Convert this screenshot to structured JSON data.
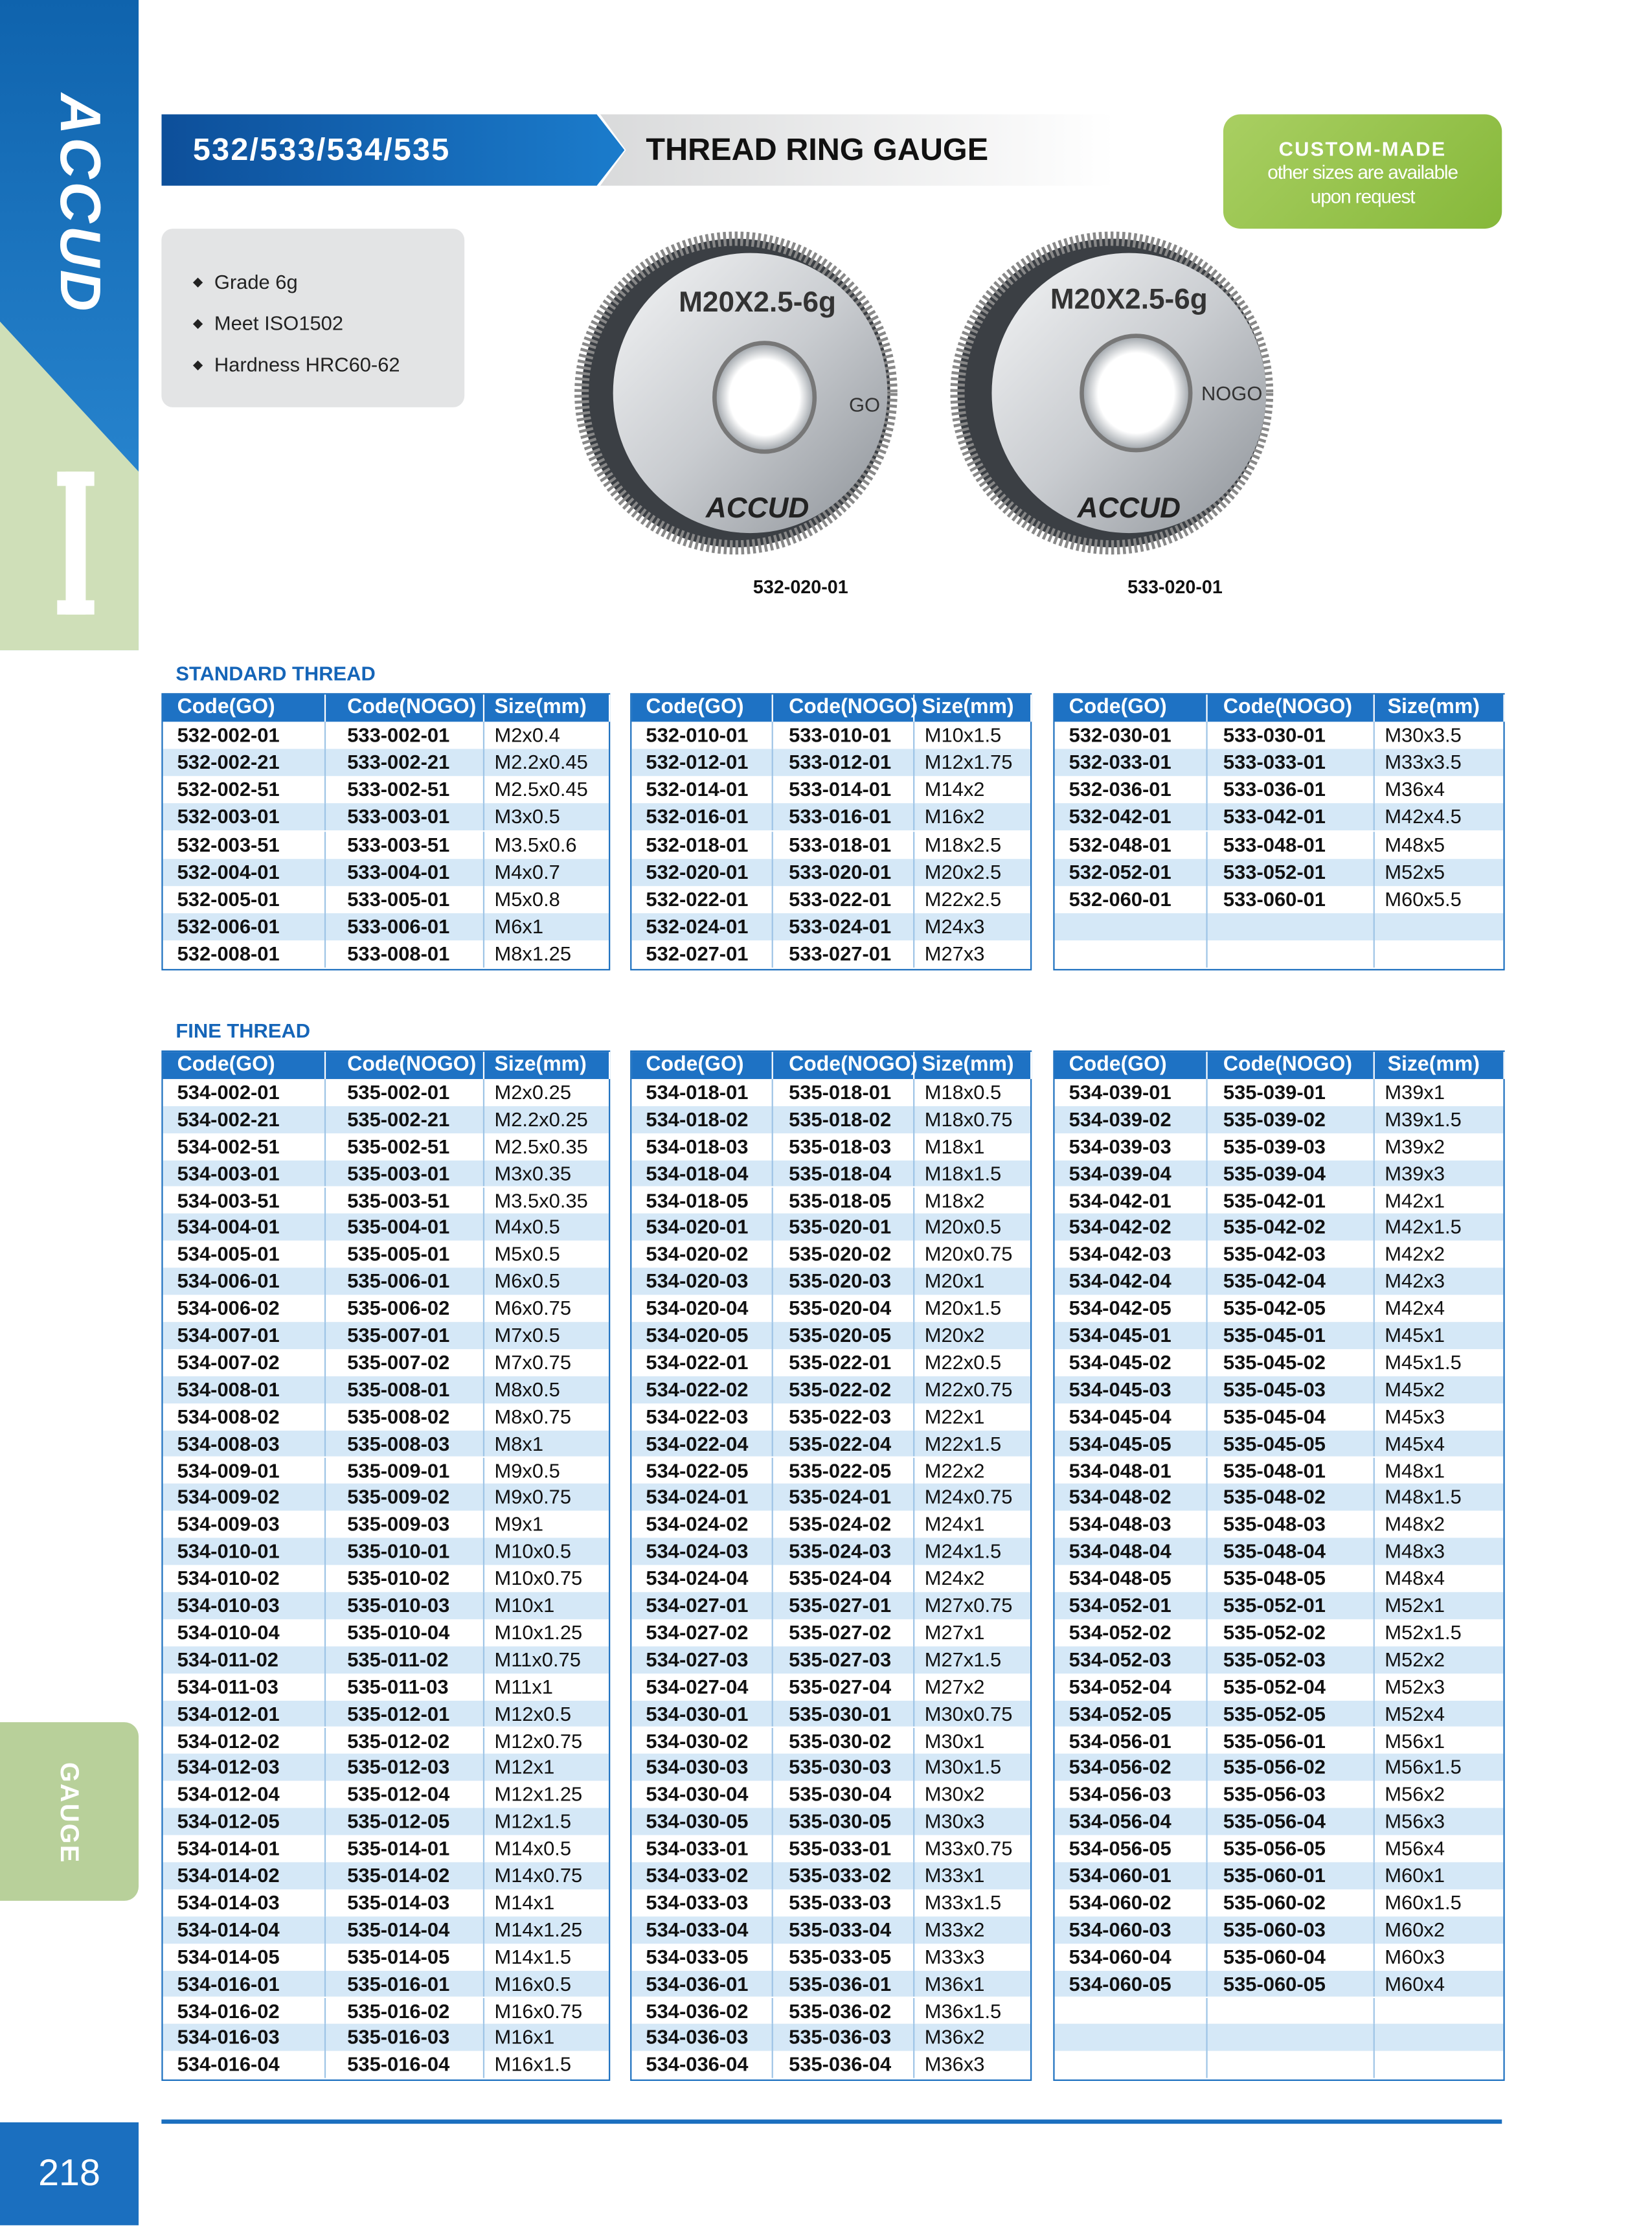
{
  "sidebar": {
    "brand": "ACCUD",
    "section": "GAUGE",
    "page_number": "218"
  },
  "header": {
    "series": "532/533/534/535",
    "title": "THREAD RING GAUGE"
  },
  "custom_made": {
    "title": "CUSTOM-MADE",
    "lines": [
      "other sizes are available",
      "upon request"
    ]
  },
  "features": [
    "Grade 6g",
    "Meet ISO1502",
    "Hardness HRC60-62"
  ],
  "products": [
    {
      "marking": "M20X2.5-6g",
      "kind": "GO",
      "brand": "ACCUD",
      "code": "532-020-01"
    },
    {
      "marking": "M20X2.5-6g",
      "kind": "NOGO",
      "brand": "ACCUD",
      "code": "533-020-01"
    }
  ],
  "sections": [
    {
      "title": "STANDARD THREAD",
      "tables": [
        {
          "header": [
            "Code(GO)",
            "Code(NOGO)",
            "Size(mm)"
          ],
          "rows": [
            [
              "532-002-01",
              "533-002-01",
              "M2x0.4"
            ],
            [
              "532-002-21",
              "533-002-21",
              "M2.2x0.45"
            ],
            [
              "532-002-51",
              "533-002-51",
              "M2.5x0.45"
            ],
            [
              "532-003-01",
              "533-003-01",
              "M3x0.5"
            ],
            [
              "532-003-51",
              "533-003-51",
              "M3.5x0.6"
            ],
            [
              "532-004-01",
              "533-004-01",
              "M4x0.7"
            ],
            [
              "532-005-01",
              "533-005-01",
              "M5x0.8"
            ],
            [
              "532-006-01",
              "533-006-01",
              "M6x1"
            ],
            [
              "532-008-01",
              "533-008-01",
              "M8x1.25"
            ]
          ]
        },
        {
          "header": [
            "Code(GO)",
            "Code(NOGO)",
            "Size(mm)"
          ],
          "rows": [
            [
              "532-010-01",
              "533-010-01",
              "M10x1.5"
            ],
            [
              "532-012-01",
              "533-012-01",
              "M12x1.75"
            ],
            [
              "532-014-01",
              "533-014-01",
              "M14x2"
            ],
            [
              "532-016-01",
              "533-016-01",
              "M16x2"
            ],
            [
              "532-018-01",
              "533-018-01",
              "M18x2.5"
            ],
            [
              "532-020-01",
              "533-020-01",
              "M20x2.5"
            ],
            [
              "532-022-01",
              "533-022-01",
              "M22x2.5"
            ],
            [
              "532-024-01",
              "533-024-01",
              "M24x3"
            ],
            [
              "532-027-01",
              "533-027-01",
              "M27x3"
            ]
          ]
        },
        {
          "header": [
            "Code(GO)",
            "Code(NOGO)",
            "Size(mm)"
          ],
          "rows": [
            [
              "532-030-01",
              "533-030-01",
              "M30x3.5"
            ],
            [
              "532-033-01",
              "533-033-01",
              "M33x3.5"
            ],
            [
              "532-036-01",
              "533-036-01",
              "M36x4"
            ],
            [
              "532-042-01",
              "533-042-01",
              "M42x4.5"
            ],
            [
              "532-048-01",
              "533-048-01",
              "M48x5"
            ],
            [
              "532-052-01",
              "533-052-01",
              "M52x5"
            ],
            [
              "532-060-01",
              "533-060-01",
              "M60x5.5"
            ]
          ]
        }
      ]
    },
    {
      "title": "FINE THREAD",
      "tables": [
        {
          "header": [
            "Code(GO)",
            "Code(NOGO)",
            "Size(mm)"
          ],
          "rows": [
            [
              "534-002-01",
              "535-002-01",
              "M2x0.25"
            ],
            [
              "534-002-21",
              "535-002-21",
              "M2.2x0.25"
            ],
            [
              "534-002-51",
              "535-002-51",
              "M2.5x0.35"
            ],
            [
              "534-003-01",
              "535-003-01",
              "M3x0.35"
            ],
            [
              "534-003-51",
              "535-003-51",
              "M3.5x0.35"
            ],
            [
              "534-004-01",
              "535-004-01",
              "M4x0.5"
            ],
            [
              "534-005-01",
              "535-005-01",
              "M5x0.5"
            ],
            [
              "534-006-01",
              "535-006-01",
              "M6x0.5"
            ],
            [
              "534-006-02",
              "535-006-02",
              "M6x0.75"
            ],
            [
              "534-007-01",
              "535-007-01",
              "M7x0.5"
            ],
            [
              "534-007-02",
              "535-007-02",
              "M7x0.75"
            ],
            [
              "534-008-01",
              "535-008-01",
              "M8x0.5"
            ],
            [
              "534-008-02",
              "535-008-02",
              "M8x0.75"
            ],
            [
              "534-008-03",
              "535-008-03",
              "M8x1"
            ],
            [
              "534-009-01",
              "535-009-01",
              "M9x0.5"
            ],
            [
              "534-009-02",
              "535-009-02",
              "M9x0.75"
            ],
            [
              "534-009-03",
              "535-009-03",
              "M9x1"
            ],
            [
              "534-010-01",
              "535-010-01",
              "M10x0.5"
            ],
            [
              "534-010-02",
              "535-010-02",
              "M10x0.75"
            ],
            [
              "534-010-03",
              "535-010-03",
              "M10x1"
            ],
            [
              "534-010-04",
              "535-010-04",
              "M10x1.25"
            ],
            [
              "534-011-02",
              "535-011-02",
              "M11x0.75"
            ],
            [
              "534-011-03",
              "535-011-03",
              "M11x1"
            ],
            [
              "534-012-01",
              "535-012-01",
              "M12x0.5"
            ],
            [
              "534-012-02",
              "535-012-02",
              "M12x0.75"
            ],
            [
              "534-012-03",
              "535-012-03",
              "M12x1"
            ],
            [
              "534-012-04",
              "535-012-04",
              "M12x1.25"
            ],
            [
              "534-012-05",
              "535-012-05",
              "M12x1.5"
            ],
            [
              "534-014-01",
              "535-014-01",
              "M14x0.5"
            ],
            [
              "534-014-02",
              "535-014-02",
              "M14x0.75"
            ],
            [
              "534-014-03",
              "535-014-03",
              "M14x1"
            ],
            [
              "534-014-04",
              "535-014-04",
              "M14x1.25"
            ],
            [
              "534-014-05",
              "535-014-05",
              "M14x1.5"
            ],
            [
              "534-016-01",
              "535-016-01",
              "M16x0.5"
            ],
            [
              "534-016-02",
              "535-016-02",
              "M16x0.75"
            ],
            [
              "534-016-03",
              "535-016-03",
              "M16x1"
            ],
            [
              "534-016-04",
              "535-016-04",
              "M16x1.5"
            ]
          ]
        },
        {
          "header": [
            "Code(GO)",
            "Code(NOGO)",
            "Size(mm)"
          ],
          "rows": [
            [
              "534-018-01",
              "535-018-01",
              "M18x0.5"
            ],
            [
              "534-018-02",
              "535-018-02",
              "M18x0.75"
            ],
            [
              "534-018-03",
              "535-018-03",
              "M18x1"
            ],
            [
              "534-018-04",
              "535-018-04",
              "M18x1.5"
            ],
            [
              "534-018-05",
              "535-018-05",
              "M18x2"
            ],
            [
              "534-020-01",
              "535-020-01",
              "M20x0.5"
            ],
            [
              "534-020-02",
              "535-020-02",
              "M20x0.75"
            ],
            [
              "534-020-03",
              "535-020-03",
              "M20x1"
            ],
            [
              "534-020-04",
              "535-020-04",
              "M20x1.5"
            ],
            [
              "534-020-05",
              "535-020-05",
              "M20x2"
            ],
            [
              "534-022-01",
              "535-022-01",
              "M22x0.5"
            ],
            [
              "534-022-02",
              "535-022-02",
              "M22x0.75"
            ],
            [
              "534-022-03",
              "535-022-03",
              "M22x1"
            ],
            [
              "534-022-04",
              "535-022-04",
              "M22x1.5"
            ],
            [
              "534-022-05",
              "535-022-05",
              "M22x2"
            ],
            [
              "534-024-01",
              "535-024-01",
              "M24x0.75"
            ],
            [
              "534-024-02",
              "535-024-02",
              "M24x1"
            ],
            [
              "534-024-03",
              "535-024-03",
              "M24x1.5"
            ],
            [
              "534-024-04",
              "535-024-04",
              "M24x2"
            ],
            [
              "534-027-01",
              "535-027-01",
              "M27x0.75"
            ],
            [
              "534-027-02",
              "535-027-02",
              "M27x1"
            ],
            [
              "534-027-03",
              "535-027-03",
              "M27x1.5"
            ],
            [
              "534-027-04",
              "535-027-04",
              "M27x2"
            ],
            [
              "534-030-01",
              "535-030-01",
              "M30x0.75"
            ],
            [
              "534-030-02",
              "535-030-02",
              "M30x1"
            ],
            [
              "534-030-03",
              "535-030-03",
              "M30x1.5"
            ],
            [
              "534-030-04",
              "535-030-04",
              "M30x2"
            ],
            [
              "534-030-05",
              "535-030-05",
              "M30x3"
            ],
            [
              "534-033-01",
              "535-033-01",
              "M33x0.75"
            ],
            [
              "534-033-02",
              "535-033-02",
              "M33x1"
            ],
            [
              "534-033-03",
              "535-033-03",
              "M33x1.5"
            ],
            [
              "534-033-04",
              "535-033-04",
              "M33x2"
            ],
            [
              "534-033-05",
              "535-033-05",
              "M33x3"
            ],
            [
              "534-036-01",
              "535-036-01",
              "M36x1"
            ],
            [
              "534-036-02",
              "535-036-02",
              "M36x1.5"
            ],
            [
              "534-036-03",
              "535-036-03",
              "M36x2"
            ],
            [
              "534-036-04",
              "535-036-04",
              "M36x3"
            ]
          ]
        },
        {
          "header": [
            "Code(GO)",
            "Code(NOGO)",
            "Size(mm)"
          ],
          "rows": [
            [
              "534-039-01",
              "535-039-01",
              "M39x1"
            ],
            [
              "534-039-02",
              "535-039-02",
              "M39x1.5"
            ],
            [
              "534-039-03",
              "535-039-03",
              "M39x2"
            ],
            [
              "534-039-04",
              "535-039-04",
              "M39x3"
            ],
            [
              "534-042-01",
              "535-042-01",
              "M42x1"
            ],
            [
              "534-042-02",
              "535-042-02",
              "M42x1.5"
            ],
            [
              "534-042-03",
              "535-042-03",
              "M42x2"
            ],
            [
              "534-042-04",
              "535-042-04",
              "M42x3"
            ],
            [
              "534-042-05",
              "535-042-05",
              "M42x4"
            ],
            [
              "534-045-01",
              "535-045-01",
              "M45x1"
            ],
            [
              "534-045-02",
              "535-045-02",
              "M45x1.5"
            ],
            [
              "534-045-03",
              "535-045-03",
              "M45x2"
            ],
            [
              "534-045-04",
              "535-045-04",
              "M45x3"
            ],
            [
              "534-045-05",
              "535-045-05",
              "M45x4"
            ],
            [
              "534-048-01",
              "535-048-01",
              "M48x1"
            ],
            [
              "534-048-02",
              "535-048-02",
              "M48x1.5"
            ],
            [
              "534-048-03",
              "535-048-03",
              "M48x2"
            ],
            [
              "534-048-04",
              "535-048-04",
              "M48x3"
            ],
            [
              "534-048-05",
              "535-048-05",
              "M48x4"
            ],
            [
              "534-052-01",
              "535-052-01",
              "M52x1"
            ],
            [
              "534-052-02",
              "535-052-02",
              "M52x1.5"
            ],
            [
              "534-052-03",
              "535-052-03",
              "M52x2"
            ],
            [
              "534-052-04",
              "535-052-04",
              "M52x3"
            ],
            [
              "534-052-05",
              "535-052-05",
              "M52x4"
            ],
            [
              "534-056-01",
              "535-056-01",
              "M56x1"
            ],
            [
              "534-056-02",
              "535-056-02",
              "M56x1.5"
            ],
            [
              "534-056-03",
              "535-056-03",
              "M56x2"
            ],
            [
              "534-056-04",
              "535-056-04",
              "M56x3"
            ],
            [
              "534-056-05",
              "535-056-05",
              "M56x4"
            ],
            [
              "534-060-01",
              "535-060-01",
              "M60x1"
            ],
            [
              "534-060-02",
              "535-060-02",
              "M60x1.5"
            ],
            [
              "534-060-03",
              "535-060-03",
              "M60x2"
            ],
            [
              "534-060-04",
              "535-060-04",
              "M60x3"
            ],
            [
              "534-060-05",
              "535-060-05",
              "M60x4"
            ]
          ]
        }
      ]
    }
  ]
}
